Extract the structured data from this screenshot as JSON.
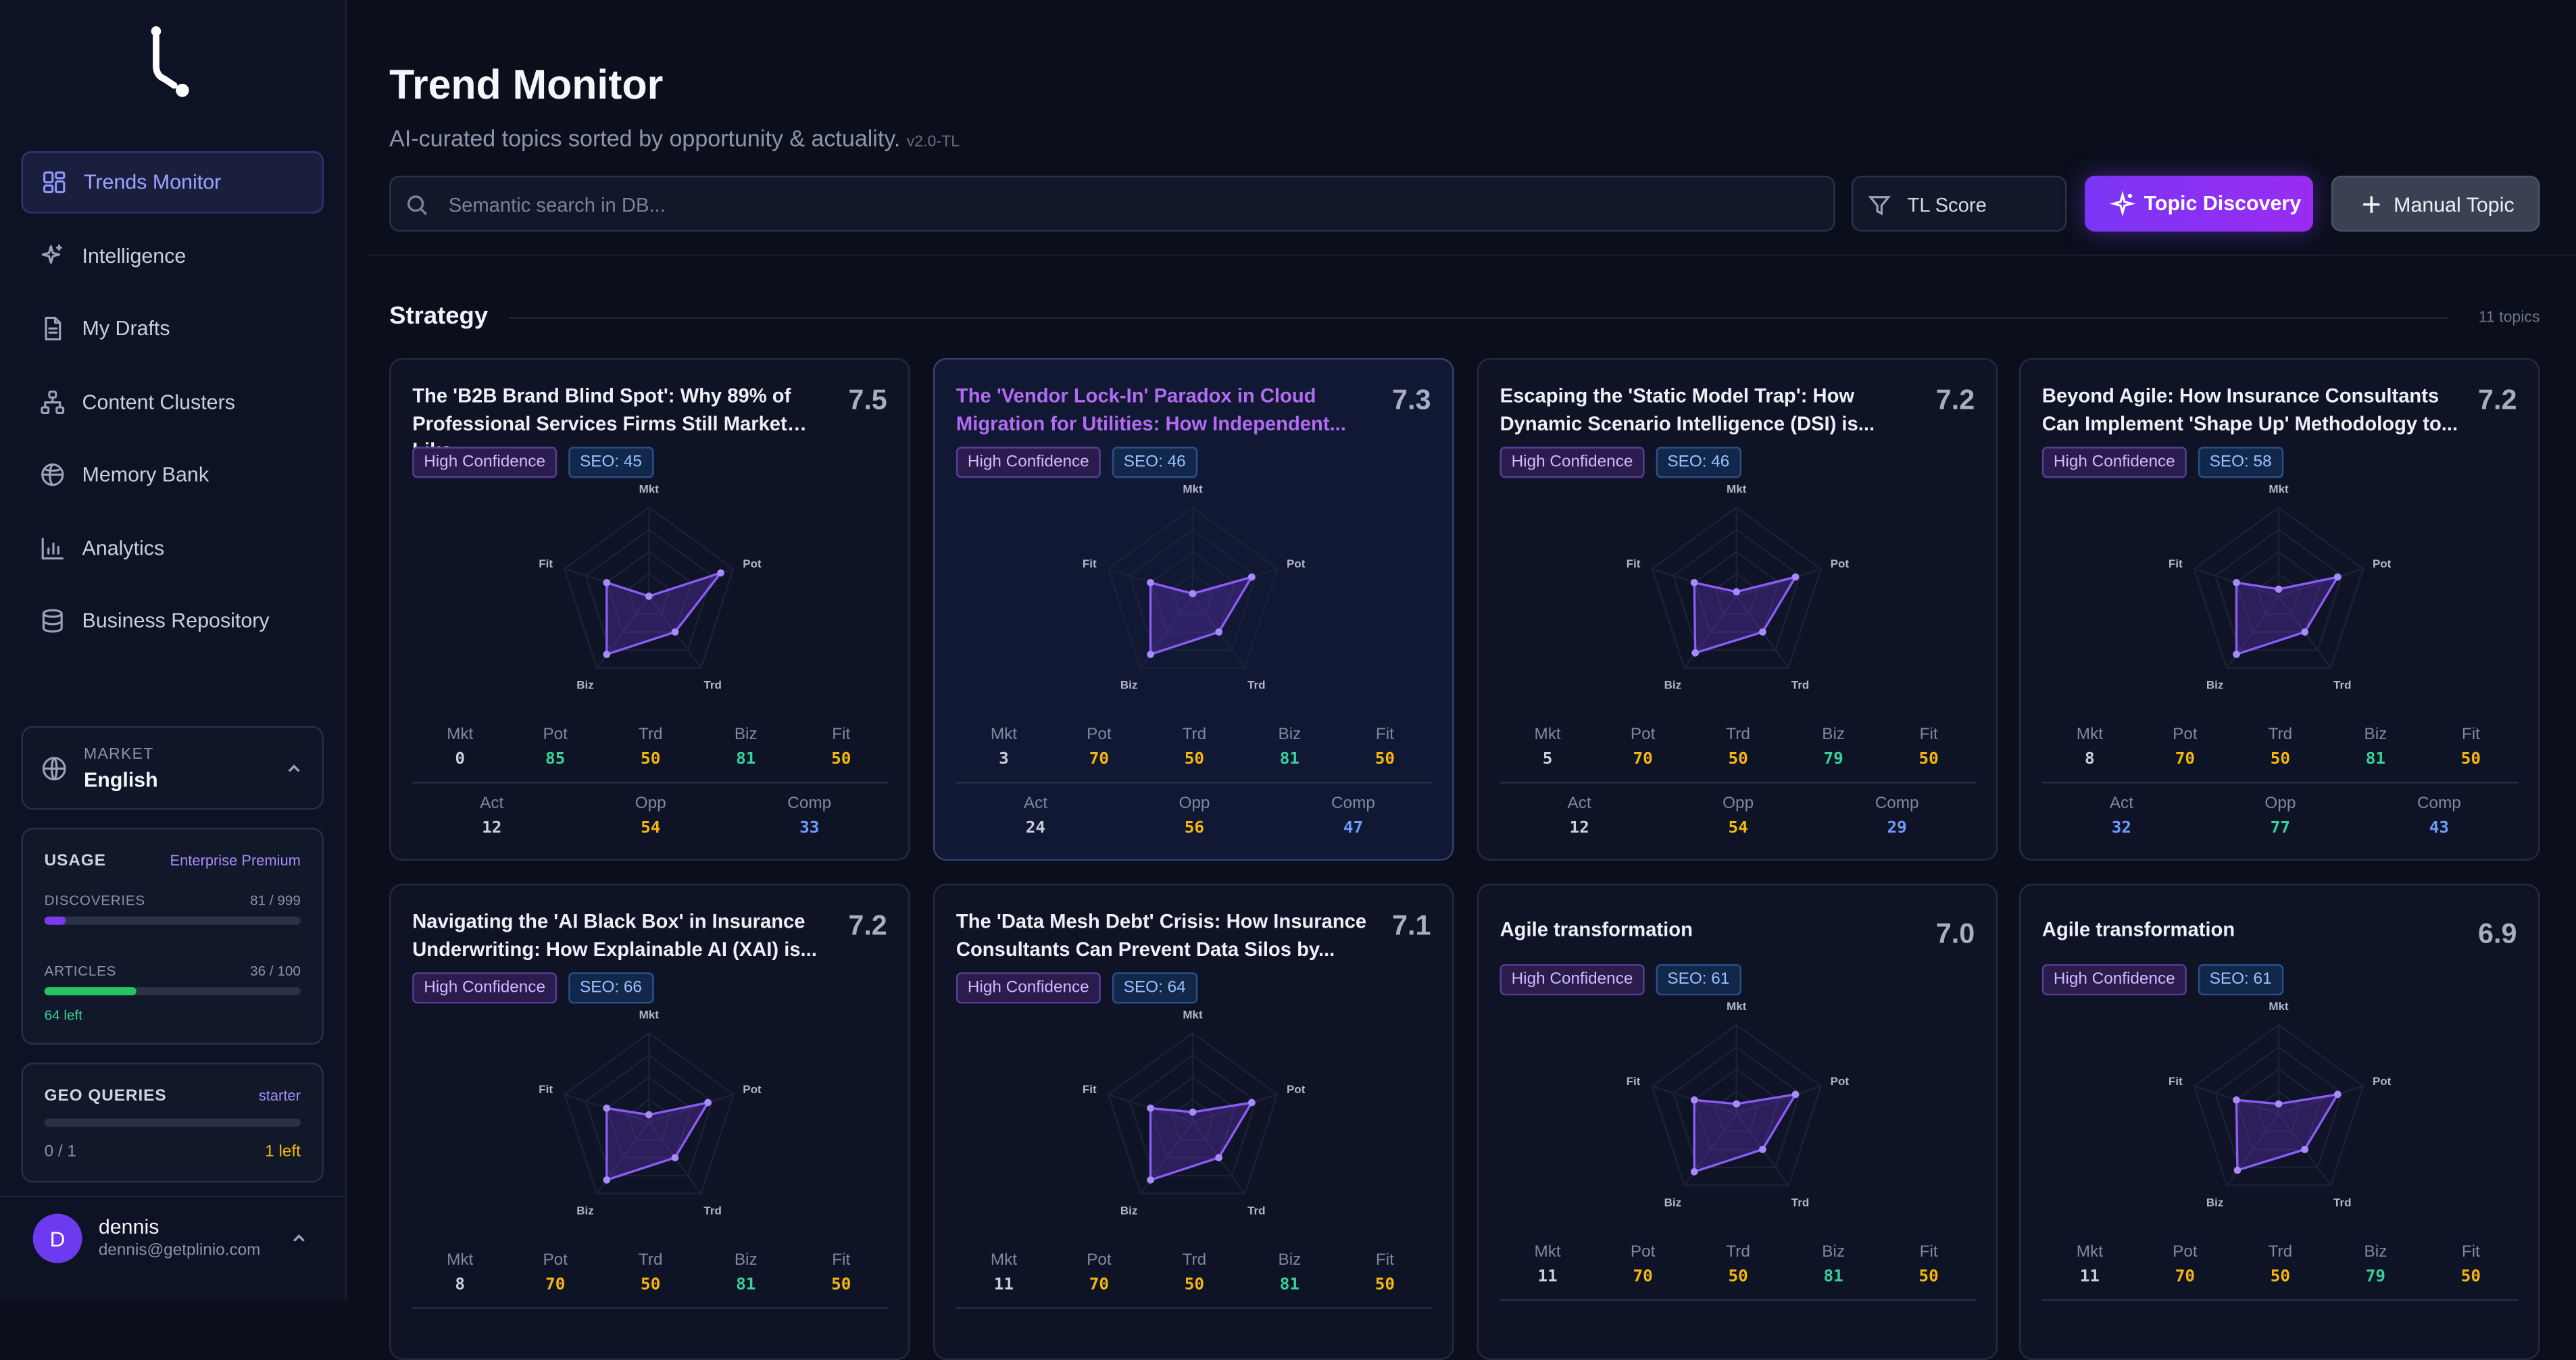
{
  "sidebar": {
    "nav": [
      {
        "label": "Trends Monitor",
        "icon": "dashboard-icon",
        "active": true
      },
      {
        "label": "Intelligence",
        "icon": "sparkles-icon",
        "active": false
      },
      {
        "label": "My Drafts",
        "icon": "file-text-icon",
        "active": false
      },
      {
        "label": "Content Clusters",
        "icon": "network-icon",
        "active": false
      },
      {
        "label": "Memory Bank",
        "icon": "brain-icon",
        "active": false
      },
      {
        "label": "Analytics",
        "icon": "bar-chart-icon",
        "active": false
      },
      {
        "label": "Business Repository",
        "icon": "database-icon",
        "active": false
      }
    ],
    "market": {
      "label": "MARKET",
      "value": "English"
    },
    "usage": {
      "title": "USAGE",
      "plan": "Enterprise Premium",
      "discoveries_label": "DISCOVERIES",
      "discoveries_value": "81 / 999",
      "discoveries_fraction": 0.081,
      "articles_label": "ARTICLES",
      "articles_value": "36 / 100",
      "articles_fraction": 0.36,
      "articles_left": "64 left"
    },
    "geo": {
      "title": "GEO QUERIES",
      "plan": "starter",
      "count": "0 / 1",
      "left": "1 left",
      "fraction": 0
    },
    "user": {
      "initial": "D",
      "name": "dennis",
      "email": "dennis@getplinio.com"
    }
  },
  "header": {
    "title": "Trend Monitor",
    "subtitle": "AI-curated topics sorted by opportunity & actuality.",
    "version": "v2.0-TL",
    "search_placeholder": "Semantic search in DB...",
    "filter_label": "TL Score",
    "discovery_button": "Topic Discovery",
    "manual_button": "Manual Topic"
  },
  "section": {
    "title": "Strategy",
    "count": "11 topics"
  },
  "colors": {
    "accent": "#7c3aed",
    "green": "#34d399",
    "yellow": "#f5b70b",
    "blue": "#6f9bff",
    "gray": "#c9cfdd"
  },
  "radar_labels": {
    "mkt": "Mkt",
    "pot": "Pot",
    "trd": "Trd",
    "biz": "Biz",
    "fit": "Fit"
  },
  "metric_labels": {
    "mkt": "Mkt",
    "pot": "Pot",
    "trd": "Trd",
    "biz": "Biz",
    "fit": "Fit",
    "act": "Act",
    "opp": "Opp",
    "comp": "Comp"
  },
  "cards": [
    {
      "title": "The 'B2B Brand Blind Spot': Why 89% of Professional Services Firms Still Market Like...",
      "score": "7.5",
      "confidence": "High Confidence",
      "seo": "SEO: 45",
      "accent": false,
      "mkt": 0,
      "pot": 85,
      "trd": 50,
      "biz": 81,
      "fit": 50,
      "act": 12,
      "opp": 54,
      "comp": 33
    },
    {
      "title": "The 'Vendor Lock-In' Paradox in Cloud Migration for Utilities: How Independent...",
      "score": "7.3",
      "confidence": "High Confidence",
      "seo": "SEO: 46",
      "accent": true,
      "mkt": 3,
      "pot": 70,
      "trd": 50,
      "biz": 81,
      "fit": 50,
      "act": 24,
      "opp": 56,
      "comp": 47
    },
    {
      "title": "Escaping the 'Static Model Trap': How Dynamic Scenario Intelligence (DSI) is...",
      "score": "7.2",
      "confidence": "High Confidence",
      "seo": "SEO: 46",
      "accent": false,
      "mkt": 5,
      "pot": 70,
      "trd": 50,
      "biz": 79,
      "fit": 50,
      "act": 12,
      "opp": 54,
      "comp": 29
    },
    {
      "title": "Beyond Agile: How Insurance Consultants Can Implement 'Shape Up' Methodology to...",
      "score": "7.2",
      "confidence": "High Confidence",
      "seo": "SEO: 58",
      "accent": false,
      "mkt": 8,
      "pot": 70,
      "trd": 50,
      "biz": 81,
      "fit": 50,
      "act": 32,
      "opp": 77,
      "comp": 43
    },
    {
      "title": "Navigating the 'AI Black Box' in Insurance Underwriting: How Explainable AI (XAI) is...",
      "score": "7.2",
      "confidence": "High Confidence",
      "seo": "SEO: 66",
      "accent": false,
      "mkt": 8,
      "pot": 70,
      "trd": 50,
      "biz": 81,
      "fit": 50
    },
    {
      "title": "The 'Data Mesh Debt' Crisis: How Insurance Consultants Can Prevent Data Silos by...",
      "score": "7.1",
      "confidence": "High Confidence",
      "seo": "SEO: 64",
      "accent": false,
      "mkt": 11,
      "pot": 70,
      "trd": 50,
      "biz": 81,
      "fit": 50
    },
    {
      "title": "Agile transformation",
      "score": "7.0",
      "confidence": "High Confidence",
      "seo": "SEO: 61",
      "accent": false,
      "mkt": 11,
      "pot": 70,
      "trd": 50,
      "biz": 81,
      "fit": 50
    },
    {
      "title": "Agile transformation",
      "score": "6.9",
      "confidence": "High Confidence",
      "seo": "SEO: 61",
      "accent": false,
      "mkt": 11,
      "pot": 70,
      "trd": 50,
      "biz": 79,
      "fit": 50
    }
  ]
}
